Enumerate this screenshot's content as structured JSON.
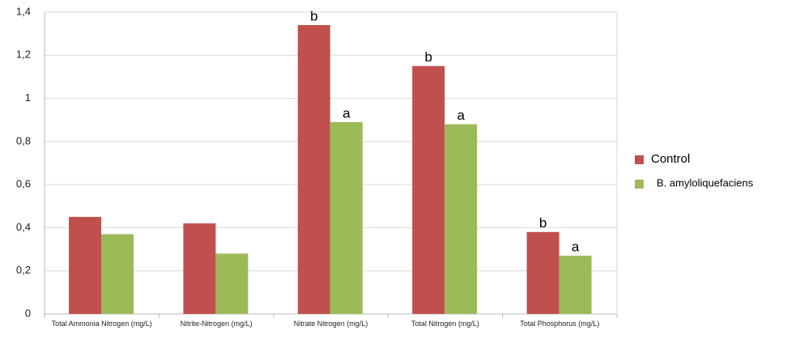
{
  "chart_data": {
    "type": "bar",
    "categories": [
      "Total Ammonia Nitrogen (mg/L)",
      "Nitrite-Nitrogen (mg/L)",
      "Nitrate Nitrogen (mg/L)",
      "Total Nitrogen (mg/L)",
      "Total Phosphorus (mg/L)"
    ],
    "series": [
      {
        "name": "Control",
        "color": "#c0504d",
        "values": [
          0.45,
          0.42,
          1.34,
          1.15,
          0.38
        ],
        "labels": [
          null,
          null,
          "b",
          "b",
          "b"
        ]
      },
      {
        "name": "B. amyloliquefaciens",
        "color": "#9bbb59",
        "values": [
          0.37,
          0.28,
          0.89,
          0.88,
          0.27
        ],
        "labels": [
          null,
          null,
          "a",
          "a",
          "a"
        ]
      }
    ],
    "ylim": [
      0,
      1.4
    ],
    "yticks": [
      0,
      {
        "value": 0.2,
        "label": "0,2"
      },
      {
        "value": 0.4,
        "label": "0,4"
      },
      {
        "value": 0.6,
        "label": "0,6"
      },
      {
        "value": 0.8,
        "label": "0,8"
      },
      1,
      {
        "value": 1.2,
        "label": "1,2"
      },
      {
        "value": 1.4,
        "label": "1,4"
      }
    ],
    "grid": true,
    "legend": "right"
  }
}
